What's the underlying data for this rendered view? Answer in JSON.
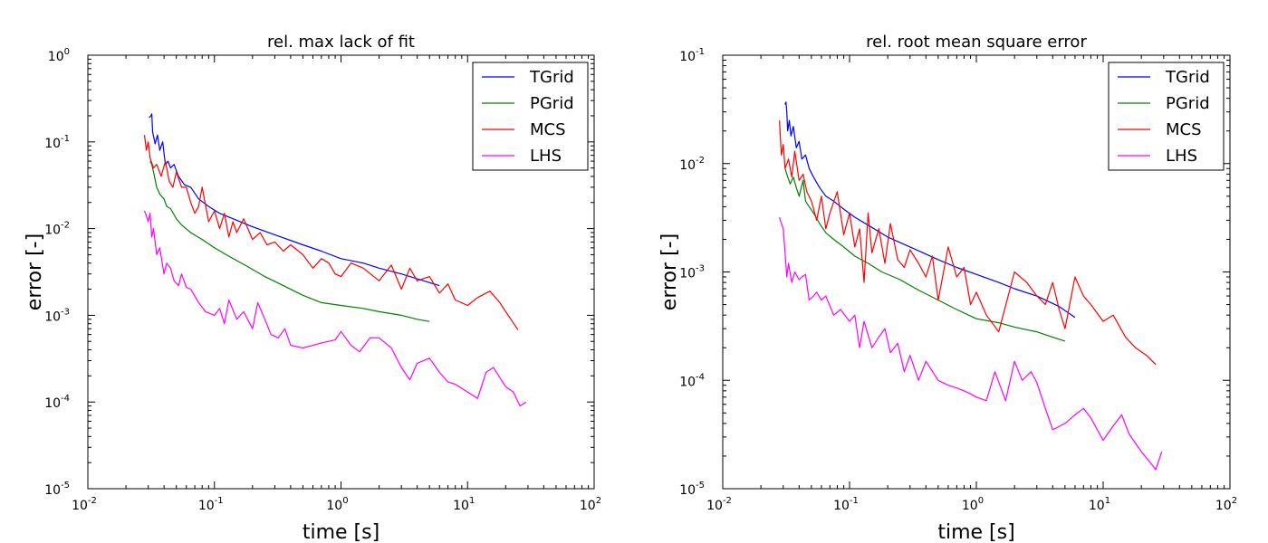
{
  "chart_data": [
    {
      "type": "line",
      "title": "rel. max lack of fit",
      "xlabel": "time [s]",
      "ylabel": "error [-]",
      "xscale": "log",
      "yscale": "log",
      "xlim": [
        0.01,
        100
      ],
      "ylim": [
        1e-05,
        1
      ],
      "x_ticks": [
        {
          "base": "10",
          "exp": "-2"
        },
        {
          "base": "10",
          "exp": "-1"
        },
        {
          "base": "10",
          "exp": "0"
        },
        {
          "base": "10",
          "exp": "1"
        },
        {
          "base": "10",
          "exp": "2"
        }
      ],
      "y_ticks": [
        {
          "base": "10",
          "exp": "-5"
        },
        {
          "base": "10",
          "exp": "-4"
        },
        {
          "base": "10",
          "exp": "-3"
        },
        {
          "base": "10",
          "exp": "-2"
        },
        {
          "base": "10",
          "exp": "-1"
        },
        {
          "base": "10",
          "exp": "0"
        }
      ],
      "legend_position": "top-right",
      "series": [
        {
          "name": "TGrid",
          "color": "#0000ff",
          "x": [
            0.0305,
            0.0315,
            0.032,
            0.0325,
            0.034,
            0.0355,
            0.037,
            0.039,
            0.041,
            0.043,
            0.045,
            0.048,
            0.052,
            0.058,
            0.065,
            0.075,
            0.09,
            0.11,
            0.14,
            0.2,
            0.3,
            0.5,
            0.7,
            1.0,
            1.5,
            2.0,
            3.0,
            4.5,
            6.0
          ],
          "y": [
            0.19,
            0.2,
            0.21,
            0.13,
            0.095,
            0.12,
            0.08,
            0.1,
            0.055,
            0.06,
            0.05,
            0.055,
            0.04,
            0.032,
            0.03,
            0.022,
            0.018,
            0.015,
            0.013,
            0.0105,
            0.0085,
            0.0065,
            0.0055,
            0.0045,
            0.004,
            0.0035,
            0.003,
            0.0025,
            0.0022
          ]
        },
        {
          "name": "PGrid",
          "color": "#008000",
          "x": [
            0.031,
            0.032,
            0.033,
            0.035,
            0.037,
            0.04,
            0.042,
            0.045,
            0.05,
            0.055,
            0.065,
            0.08,
            0.1,
            0.13,
            0.18,
            0.25,
            0.35,
            0.5,
            0.7,
            1.0,
            1.5,
            2.0,
            3.0,
            4.0,
            5.0
          ],
          "y": [
            0.06,
            0.055,
            0.045,
            0.03,
            0.025,
            0.022,
            0.018,
            0.017,
            0.013,
            0.011,
            0.009,
            0.0075,
            0.006,
            0.0048,
            0.0037,
            0.0028,
            0.0022,
            0.0017,
            0.0014,
            0.0013,
            0.0012,
            0.0011,
            0.001,
            0.0009,
            0.00085
          ]
        },
        {
          "name": "MCS",
          "color": "#ff0000",
          "x": [
            0.028,
            0.029,
            0.03,
            0.031,
            0.033,
            0.035,
            0.038,
            0.041,
            0.044,
            0.047,
            0.05,
            0.055,
            0.06,
            0.065,
            0.07,
            0.075,
            0.08,
            0.09,
            0.1,
            0.11,
            0.12,
            0.13,
            0.14,
            0.15,
            0.17,
            0.2,
            0.23,
            0.26,
            0.3,
            0.35,
            0.4,
            0.5,
            0.6,
            0.7,
            0.8,
            0.9,
            1.0,
            1.2,
            1.5,
            2.0,
            2.5,
            3.0,
            3.5,
            4.0,
            5.0,
            6.0,
            7.0,
            8.0,
            10.0,
            12.0,
            15.0,
            18.0,
            20.0,
            22.0,
            25.0
          ],
          "y": [
            0.12,
            0.08,
            0.1,
            0.065,
            0.05,
            0.055,
            0.04,
            0.06,
            0.035,
            0.03,
            0.045,
            0.03,
            0.03,
            0.02,
            0.015,
            0.018,
            0.03,
            0.012,
            0.016,
            0.01,
            0.015,
            0.008,
            0.012,
            0.009,
            0.013,
            0.0075,
            0.009,
            0.0065,
            0.007,
            0.0055,
            0.0065,
            0.005,
            0.0035,
            0.0045,
            0.004,
            0.003,
            0.0028,
            0.004,
            0.0035,
            0.0025,
            0.0038,
            0.002,
            0.0035,
            0.0025,
            0.0028,
            0.0018,
            0.0023,
            0.0015,
            0.0013,
            0.0016,
            0.0019,
            0.0014,
            0.0011,
            0.0009,
            0.00068
          ]
        },
        {
          "name": "LHS",
          "color": "#ff00ff",
          "x": [
            0.028,
            0.029,
            0.03,
            0.031,
            0.032,
            0.033,
            0.035,
            0.037,
            0.04,
            0.042,
            0.045,
            0.048,
            0.052,
            0.055,
            0.06,
            0.065,
            0.075,
            0.085,
            0.1,
            0.11,
            0.12,
            0.13,
            0.15,
            0.17,
            0.2,
            0.22,
            0.25,
            0.28,
            0.32,
            0.36,
            0.4,
            0.5,
            0.6,
            0.7,
            0.8,
            0.9,
            1.0,
            1.2,
            1.4,
            1.7,
            2.0,
            2.5,
            3.0,
            3.5,
            4.0,
            5.0,
            6.0,
            7.0,
            8.0,
            10.0,
            12.0,
            14.0,
            16.0,
            20.0,
            23.0,
            26.0,
            29.0
          ],
          "y": [
            0.016,
            0.014,
            0.012,
            0.015,
            0.008,
            0.01,
            0.005,
            0.006,
            0.003,
            0.004,
            0.0035,
            0.0025,
            0.0022,
            0.003,
            0.0021,
            0.002,
            0.0014,
            0.0011,
            0.001,
            0.0012,
            0.0008,
            0.0015,
            0.0009,
            0.0011,
            0.0007,
            0.0014,
            0.0009,
            0.0006,
            0.00055,
            0.0007,
            0.00045,
            0.00042,
            0.00045,
            0.00048,
            0.0005,
            0.00052,
            0.00065,
            0.00045,
            0.00038,
            0.00055,
            0.00055,
            0.00042,
            0.00025,
            0.00018,
            0.00028,
            0.00032,
            0.00022,
            0.00017,
            0.00016,
            0.00013,
            0.00011,
            0.00022,
            0.00025,
            0.00015,
            0.00013,
            9e-05,
            0.0001
          ]
        }
      ]
    },
    {
      "type": "line",
      "title": "rel. root mean square error",
      "xlabel": "time [s]",
      "ylabel": "error [-]",
      "xscale": "log",
      "yscale": "log",
      "xlim": [
        0.01,
        100
      ],
      "ylim": [
        1e-05,
        0.1
      ],
      "x_ticks": [
        {
          "base": "10",
          "exp": "-2"
        },
        {
          "base": "10",
          "exp": "-1"
        },
        {
          "base": "10",
          "exp": "0"
        },
        {
          "base": "10",
          "exp": "1"
        },
        {
          "base": "10",
          "exp": "2"
        }
      ],
      "y_ticks": [
        {
          "base": "10",
          "exp": "-5"
        },
        {
          "base": "10",
          "exp": "-4"
        },
        {
          "base": "10",
          "exp": "-3"
        },
        {
          "base": "10",
          "exp": "-2"
        },
        {
          "base": "10",
          "exp": "-1"
        }
      ],
      "legend_position": "top-right",
      "series": [
        {
          "name": "TGrid",
          "color": "#0000ff",
          "x": [
            0.031,
            0.0315,
            0.032,
            0.0325,
            0.0335,
            0.0345,
            0.036,
            0.038,
            0.04,
            0.042,
            0.045,
            0.048,
            0.052,
            0.058,
            0.065,
            0.075,
            0.09,
            0.11,
            0.14,
            0.2,
            0.3,
            0.5,
            0.7,
            1.0,
            1.5,
            2.0,
            3.0,
            4.5,
            6.0
          ],
          "y": [
            0.035,
            0.037,
            0.03,
            0.02,
            0.025,
            0.018,
            0.022,
            0.014,
            0.016,
            0.011,
            0.012,
            0.009,
            0.0075,
            0.006,
            0.005,
            0.0045,
            0.0038,
            0.0032,
            0.0027,
            0.0021,
            0.0017,
            0.0013,
            0.0011,
            0.00095,
            0.0008,
            0.0007,
            0.0006,
            0.00048,
            0.00038
          ]
        },
        {
          "name": "PGrid",
          "color": "#008000",
          "x": [
            0.031,
            0.032,
            0.034,
            0.036,
            0.038,
            0.04,
            0.043,
            0.045,
            0.048,
            0.052,
            0.058,
            0.065,
            0.075,
            0.09,
            0.11,
            0.14,
            0.18,
            0.25,
            0.35,
            0.5,
            0.7,
            1.0,
            1.5,
            2.0,
            3.0,
            4.0,
            5.0
          ],
          "y": [
            0.009,
            0.008,
            0.0065,
            0.0075,
            0.006,
            0.005,
            0.007,
            0.0045,
            0.004,
            0.0035,
            0.0028,
            0.0023,
            0.002,
            0.0017,
            0.0014,
            0.0012,
            0.001,
            0.00085,
            0.00068,
            0.00055,
            0.00045,
            0.00037,
            0.00034,
            0.00031,
            0.00028,
            0.00025,
            0.00023
          ]
        },
        {
          "name": "MCS",
          "color": "#ff0000",
          "x": [
            0.028,
            0.029,
            0.03,
            0.031,
            0.033,
            0.035,
            0.037,
            0.04,
            0.043,
            0.046,
            0.05,
            0.055,
            0.06,
            0.065,
            0.07,
            0.08,
            0.09,
            0.1,
            0.11,
            0.12,
            0.13,
            0.14,
            0.15,
            0.17,
            0.19,
            0.21,
            0.24,
            0.27,
            0.3,
            0.35,
            0.4,
            0.45,
            0.5,
            0.6,
            0.7,
            0.8,
            0.9,
            1.0,
            1.2,
            1.5,
            2.0,
            2.5,
            3.0,
            3.5,
            4.0,
            4.5,
            5.0,
            6.0,
            7.0,
            8.0,
            10.0,
            12.0,
            15.0,
            18.0,
            22.0,
            26.0
          ],
          "y": [
            0.025,
            0.012,
            0.015,
            0.009,
            0.011,
            0.0075,
            0.013,
            0.007,
            0.008,
            0.0055,
            0.0045,
            0.003,
            0.005,
            0.0025,
            0.0035,
            0.0055,
            0.0022,
            0.0035,
            0.0017,
            0.0025,
            0.0008,
            0.0035,
            0.0015,
            0.0025,
            0.0012,
            0.0028,
            0.0013,
            0.0011,
            0.0016,
            0.0012,
            0.0009,
            0.0014,
            0.00055,
            0.0017,
            0.0009,
            0.0011,
            0.0005,
            0.00065,
            0.0004,
            0.00028,
            0.001,
            0.0008,
            0.0006,
            0.0005,
            0.0008,
            0.00045,
            0.0003,
            0.0009,
            0.0006,
            0.0005,
            0.00035,
            0.0004,
            0.00025,
            0.0002,
            0.00017,
            0.00014
          ]
        },
        {
          "name": "LHS",
          "color": "#ff00ff",
          "x": [
            0.028,
            0.029,
            0.03,
            0.031,
            0.032,
            0.033,
            0.035,
            0.037,
            0.04,
            0.042,
            0.045,
            0.048,
            0.052,
            0.055,
            0.06,
            0.065,
            0.075,
            0.085,
            0.1,
            0.11,
            0.12,
            0.13,
            0.15,
            0.17,
            0.19,
            0.21,
            0.24,
            0.27,
            0.3,
            0.35,
            0.4,
            0.5,
            0.6,
            0.7,
            0.8,
            0.9,
            1.0,
            1.2,
            1.4,
            1.7,
            2.0,
            2.3,
            2.7,
            3.0,
            3.5,
            4.0,
            5.0,
            6.0,
            7.0,
            8.0,
            10.0,
            12.0,
            14.0,
            16.0,
            20.0,
            23.0,
            26.0,
            29.0
          ],
          "y": [
            0.0032,
            0.0028,
            0.0025,
            0.0015,
            0.0009,
            0.0012,
            0.0008,
            0.001,
            0.00085,
            0.0009,
            0.00095,
            0.00055,
            0.0006,
            0.00065,
            0.00055,
            0.0006,
            0.0004,
            0.00045,
            0.00035,
            0.0004,
            0.0002,
            0.00035,
            0.0002,
            0.00025,
            0.0003,
            0.00018,
            0.00022,
            0.00012,
            0.00017,
            0.0001,
            0.00015,
            0.0001,
            9e-05,
            8.5e-05,
            8e-05,
            7.5e-05,
            7e-05,
            6.5e-05,
            0.00012,
            6.5e-05,
            0.00015,
            0.0001,
            0.00012,
            9.5e-05,
            5.5e-05,
            3.5e-05,
            4e-05,
            4.8e-05,
            5.5e-05,
            4.5e-05,
            2.8e-05,
            3.8e-05,
            4.8e-05,
            3.2e-05,
            2.2e-05,
            1.8e-05,
            1.5e-05,
            2.2e-05
          ]
        }
      ]
    }
  ]
}
